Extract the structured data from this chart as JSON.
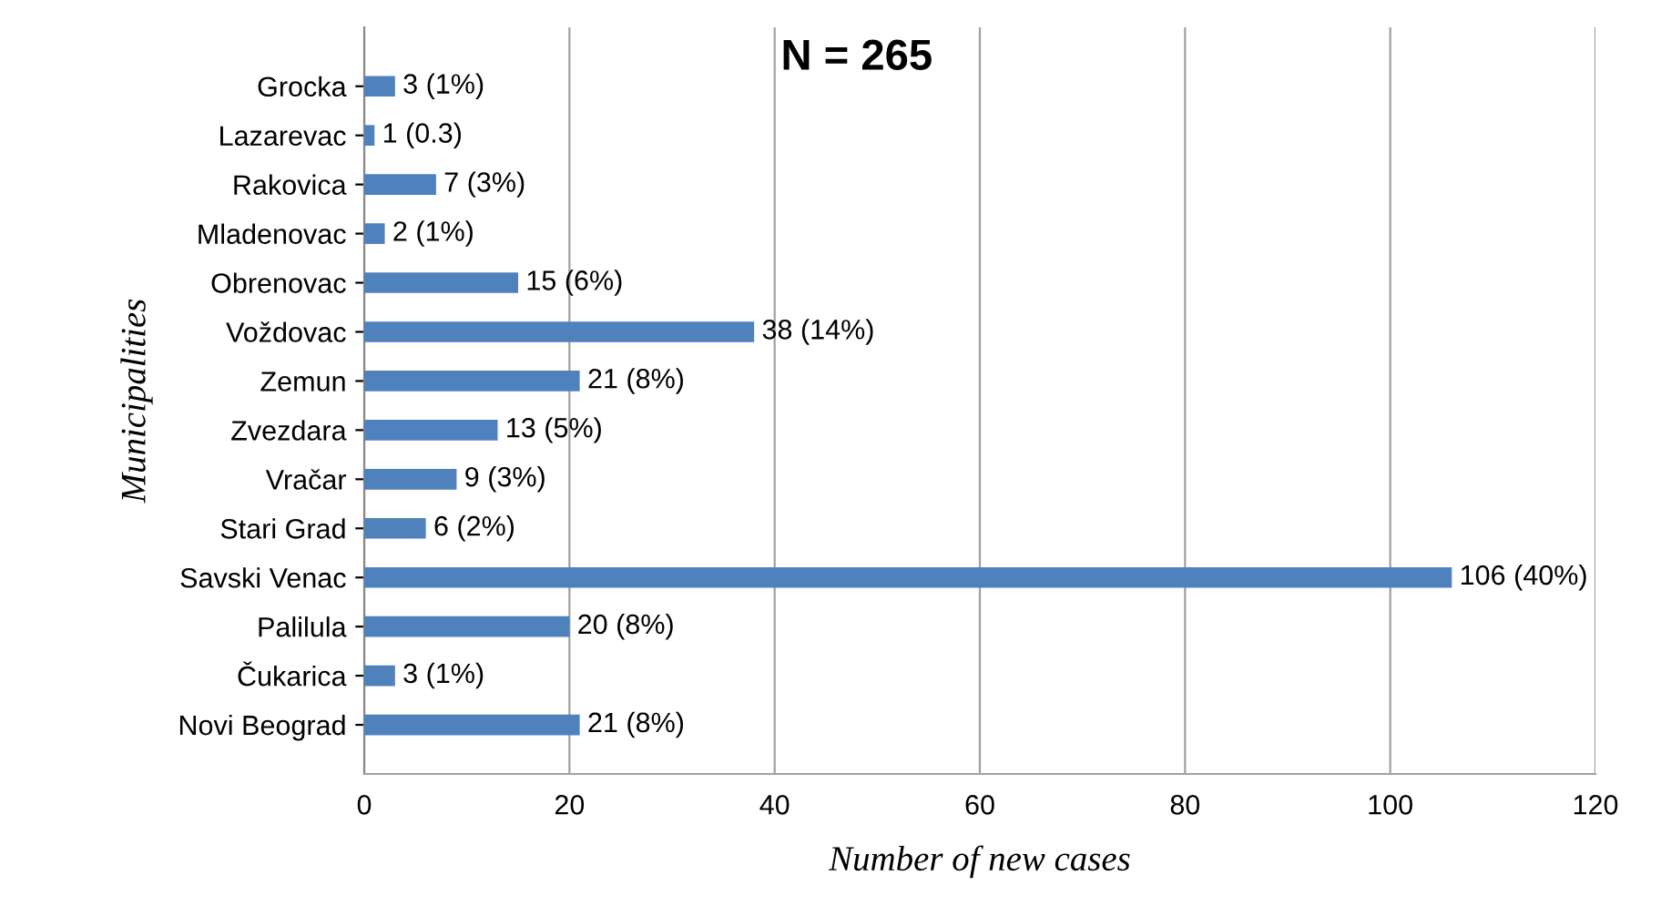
{
  "chart_data": {
    "type": "bar",
    "orientation": "horizontal",
    "title": "N = 265",
    "xlabel": "Number of new cases",
    "ylabel": "Municipalities",
    "categories": [
      "Grocka",
      "Lazarevac",
      "Rakovica",
      "Mladenovac",
      "Obrenovac",
      "Voždovac",
      "Zemun",
      "Zvezdara",
      "Vračar",
      "Stari Grad",
      "Savski Venac",
      "Palilula",
      "Čukarica",
      "Novi Beograd"
    ],
    "values": [
      3,
      1,
      7,
      2,
      15,
      38,
      21,
      13,
      9,
      6,
      106,
      20,
      3,
      21
    ],
    "value_labels": [
      "3 (1%)",
      "1 (0.3)",
      "7 (3%)",
      "2 (1%)",
      "15 (6%)",
      "38 (14%)",
      "21 (8%)",
      "13 (5%)",
      "9 (3%)",
      "6 (2%)",
      "106 (40%)",
      "20 (8%)",
      "3 (1%)",
      "21 (8%)"
    ],
    "color": "#4f81bd",
    "xlim": [
      0,
      120
    ],
    "xticks": [
      0,
      20,
      40,
      60,
      80,
      100,
      120
    ],
    "grid": "x"
  }
}
